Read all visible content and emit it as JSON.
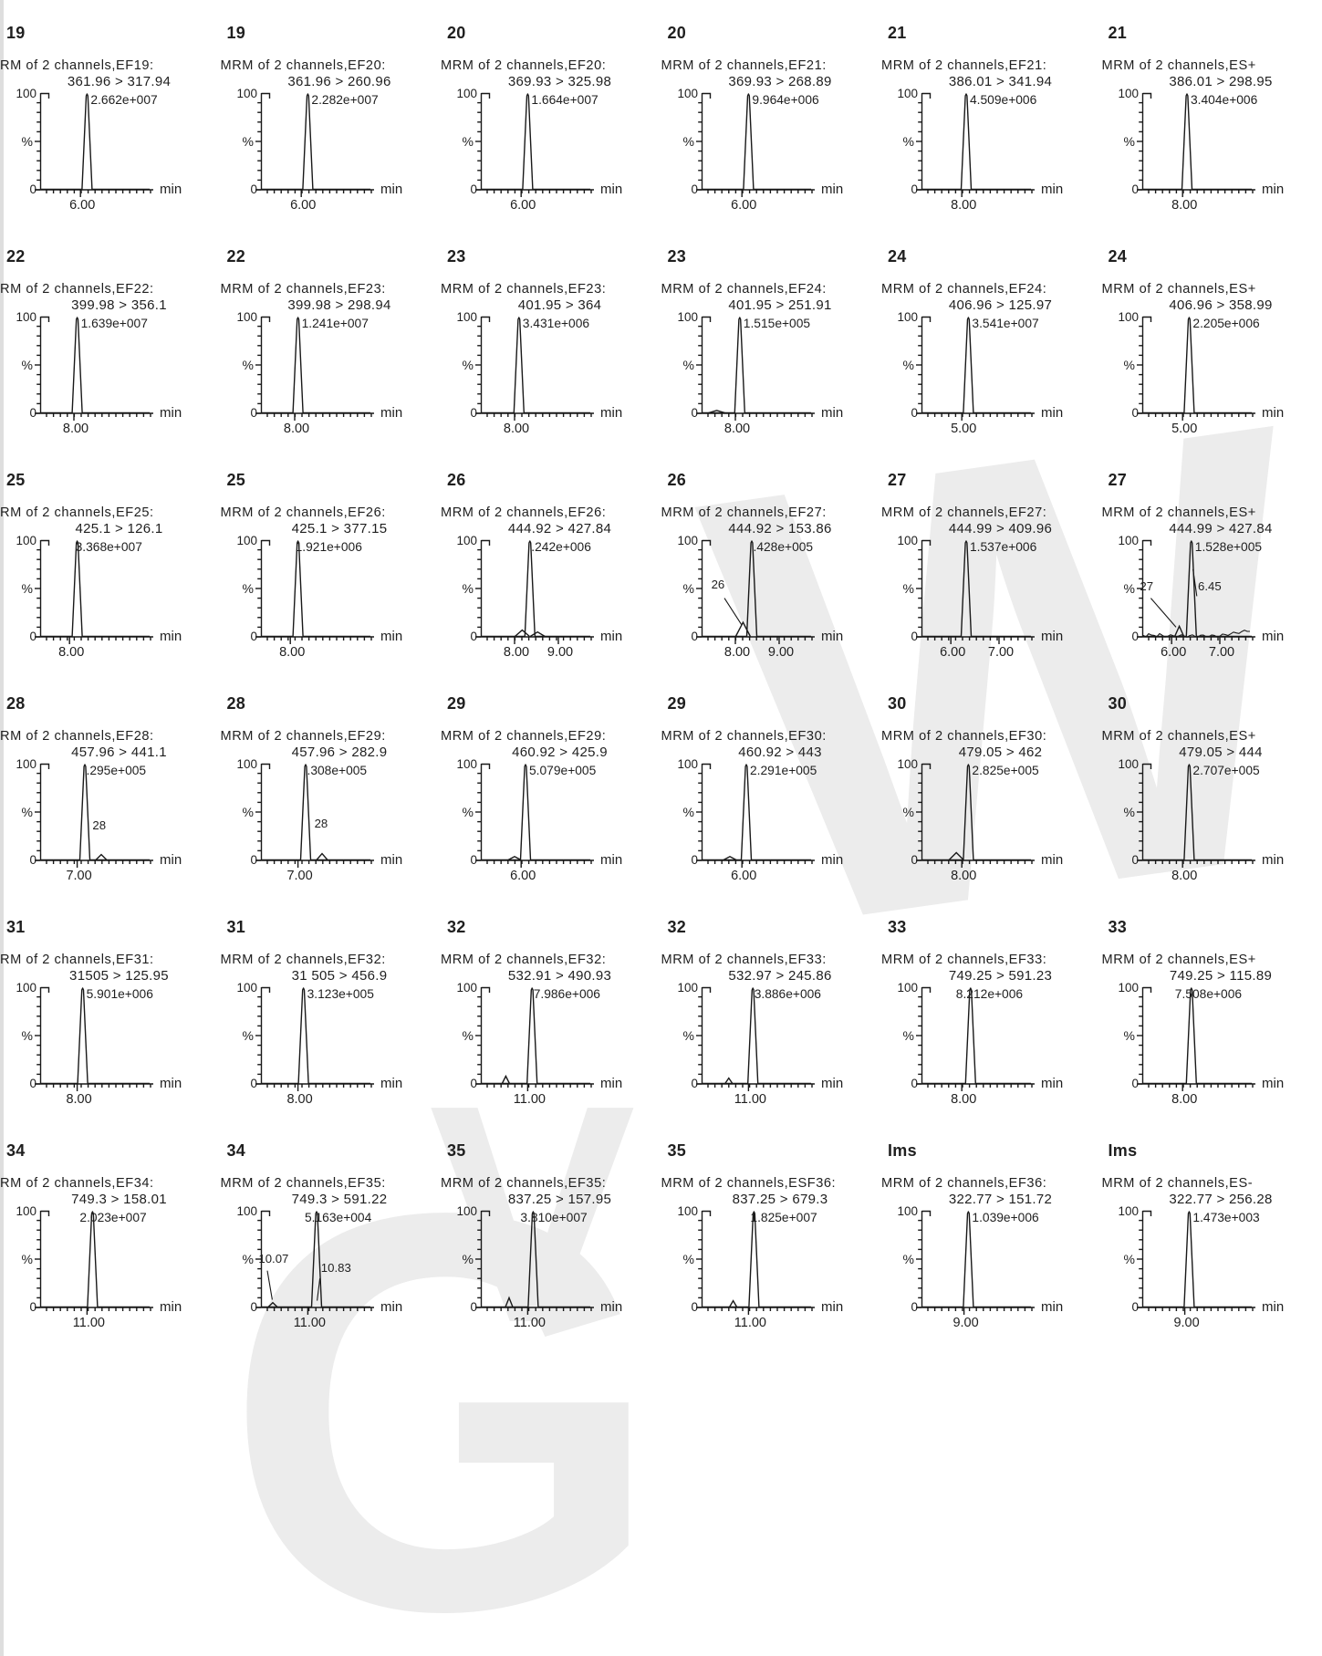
{
  "figure": {
    "description_labels": {
      "y_max": "100",
      "y_min": "0",
      "y_unit": "%",
      "x_unit": "min"
    },
    "watermark_letters": [
      "G",
      "V",
      "W"
    ]
  },
  "chart_data": {
    "type": "line",
    "layout": {
      "rows": 6,
      "cols": 6,
      "grid": "off",
      "each_subplot": "MRM chromatogram, y 0-100 %, single sharp peak"
    },
    "axis": {
      "y_max": "100",
      "y_min": "0",
      "y_unit": "%",
      "x_unit": "min"
    },
    "subplots": [
      {
        "label": "19",
        "header": "RM of 2 channels,EF19:",
        "transition": "361.96 > 317.94",
        "intensity": "2.662e+007",
        "peak": 0.42,
        "xticks": [
          {
            "f": 0.36,
            "t": "6.00"
          }
        ],
        "bumps": [],
        "ann": []
      },
      {
        "label": "19",
        "header": "MRM of 2 channels,EF20:",
        "transition": "361.96 > 260.96",
        "intensity": "2.282e+007",
        "peak": 0.42,
        "xticks": [
          {
            "f": 0.36,
            "t": "6.00"
          }
        ],
        "bumps": [],
        "ann": []
      },
      {
        "label": "20",
        "header": "MRM of 2 channels,EF20:",
        "transition": "369.93 > 325.98",
        "intensity": "1.664e+007",
        "peak": 0.42,
        "xticks": [
          {
            "f": 0.36,
            "t": "6.00"
          }
        ],
        "bumps": [],
        "ann": []
      },
      {
        "label": "20",
        "header": "MRM of 2 channels,EF21:",
        "transition": "369.93 > 268.89",
        "intensity": "9.964e+006",
        "peak": 0.42,
        "xticks": [
          {
            "f": 0.36,
            "t": "6.00"
          }
        ],
        "bumps": [],
        "ann": []
      },
      {
        "label": "21",
        "header": "MRM of 2 channels,EF21:",
        "transition": "386.01 > 341.94",
        "intensity": "4.509e+006",
        "peak": 0.4,
        "xticks": [
          {
            "f": 0.36,
            "t": "8.00"
          }
        ],
        "bumps": [],
        "ann": []
      },
      {
        "label": "21",
        "header": "MRM of 2 channels,ES+",
        "transition": "386.01 > 298.95",
        "intensity": "3.404e+006",
        "peak": 0.4,
        "xticks": [
          {
            "f": 0.36,
            "t": "8.00"
          }
        ],
        "bumps": [],
        "ann": []
      },
      {
        "label": "22",
        "header": "RM of 2 channels,EF22:",
        "transition": "399.98 > 356.1",
        "intensity": "1.639e+007",
        "peak": 0.33,
        "xticks": [
          {
            "f": 0.3,
            "t": "8.00"
          }
        ],
        "bumps": [],
        "ann": []
      },
      {
        "label": "22",
        "header": "MRM of 2 channels,EF23:",
        "transition": "399.98 > 298.94",
        "intensity": "1.241e+007",
        "peak": 0.33,
        "xticks": [
          {
            "f": 0.3,
            "t": "8.00"
          }
        ],
        "bumps": [],
        "ann": []
      },
      {
        "label": "23",
        "header": "MRM of 2 channels,EF23:",
        "transition": "401.95 > 364",
        "intensity": "3.431e+006",
        "peak": 0.34,
        "xticks": [
          {
            "f": 0.3,
            "t": "8.00"
          }
        ],
        "bumps": [],
        "ann": []
      },
      {
        "label": "23",
        "header": "MRM of 2 channels,EF24:",
        "transition": "401.95 > 251.91",
        "intensity": "1.515e+005",
        "peak": 0.34,
        "xticks": [
          {
            "f": 0.3,
            "t": "8.00"
          }
        ],
        "bumps": [
          {
            "f": 0.13,
            "h": 0.03,
            "w": 9
          }
        ],
        "ann": []
      },
      {
        "label": "24",
        "header": "MRM of 2 channels,EF24:",
        "transition": "406.96 > 125.97",
        "intensity": "3.541e+007",
        "peak": 0.42,
        "xticks": [
          {
            "f": 0.36,
            "t": "5.00"
          }
        ],
        "bumps": [],
        "ann": []
      },
      {
        "label": "24",
        "header": "MRM of 2 channels,ES+",
        "transition": "406.96 > 358.99",
        "intensity": "2.205e+006",
        "peak": 0.42,
        "xticks": [
          {
            "f": 0.36,
            "t": "5.00"
          }
        ],
        "bumps": [],
        "ann": []
      },
      {
        "label": "25",
        "header": "RM of 2 channels,EF25:",
        "transition": "425.1 > 126.1",
        "intensity": "3.368e+007",
        "peak": 0.33,
        "ioff": -2,
        "xticks": [
          {
            "f": 0.26,
            "t": "8.00"
          }
        ],
        "bumps": [],
        "ann": []
      },
      {
        "label": "25",
        "header": "MRM of 2 channels,EF26:",
        "transition": "425.1 > 377.15",
        "intensity": "1.921e+006",
        "peak": 0.33,
        "ioff": -3,
        "xticks": [
          {
            "f": 0.26,
            "t": "8.00"
          }
        ],
        "bumps": [],
        "ann": []
      },
      {
        "label": "26",
        "header": "MRM of 2 channels,EF26:",
        "transition": "444.92 > 427.84",
        "intensity": ".242e+006",
        "peak": 0.44,
        "ioff": 1.5,
        "xticks": [
          {
            "f": 0.3,
            "t": "8.00"
          },
          {
            "f": 0.7,
            "t": "9.00"
          }
        ],
        "bumps": [
          {
            "f": 0.37,
            "h": 0.07,
            "w": 8
          },
          {
            "f": 0.51,
            "h": 0.05,
            "w": 8
          }
        ],
        "ann": []
      },
      {
        "label": "26",
        "header": "MRM of 2 channels,EF27:",
        "transition": "444.92 > 153.86",
        "intensity": ".428e+005",
        "peak": 0.45,
        "ioff": 1.5,
        "xticks": [
          {
            "f": 0.3,
            "t": "8.00"
          },
          {
            "f": 0.7,
            "t": "9.00"
          }
        ],
        "bumps": [
          {
            "f": 0.37,
            "h": 0.15,
            "w": 8
          }
        ],
        "ann": [
          {
            "t": "26",
            "x": 0.08,
            "y": 0.5,
            "l": [
              0.2,
              0.6,
              0.36,
              0.88
            ]
          }
        ]
      },
      {
        "label": "27",
        "header": "MRM of 2 channels,EF27:",
        "transition": "444.99 > 409.96",
        "intensity": "1.537e+006",
        "peak": 0.4,
        "xticks": [
          {
            "f": 0.26,
            "t": "6.00"
          },
          {
            "f": 0.7,
            "t": "7.00"
          }
        ],
        "bumps": [],
        "ann": []
      },
      {
        "label": "27",
        "header": "MRM of 2 channels,ES+",
        "transition": "444.99 > 427.84",
        "intensity": "1.528e+005",
        "peak": 0.44,
        "noise": true,
        "xticks": [
          {
            "f": 0.26,
            "t": "6.00"
          },
          {
            "f": 0.7,
            "t": "7.00"
          }
        ],
        "bumps": [
          {
            "f": 0.33,
            "h": 0.11,
            "w": 5
          }
        ],
        "ann": [
          {
            "t": "27",
            "x": -0.03,
            "y": 0.52,
            "l": [
              0.07,
              0.6,
              0.3,
              0.9
            ]
          },
          {
            "t": "6.45",
            "x": 0.5,
            "y": 0.52,
            "l": [
              0.49,
              0.58,
              0.455,
              0.3
            ]
          }
        ]
      },
      {
        "label": "28",
        "header": "RM of 2 channels,EF28:",
        "transition": "457.96 > 441.1",
        "intensity": ".295e+005",
        "peak": 0.4,
        "ioff": 1.5,
        "xticks": [
          {
            "f": 0.33,
            "t": "7.00"
          }
        ],
        "bumps": [
          {
            "f": 0.55,
            "h": 0.06,
            "w": 6
          }
        ],
        "ann": [
          {
            "t": "28",
            "x": 0.47,
            "y": 0.68
          }
        ]
      },
      {
        "label": "28",
        "header": "MRM of 2 channels,EF29:",
        "transition": "457.96 > 282.9",
        "intensity": ".308e+005",
        "peak": 0.4,
        "ioff": 1.5,
        "xticks": [
          {
            "f": 0.33,
            "t": "7.00"
          }
        ],
        "bumps": [
          {
            "f": 0.55,
            "h": 0.07,
            "w": 6
          }
        ],
        "ann": [
          {
            "t": "28",
            "x": 0.48,
            "y": 0.66
          }
        ]
      },
      {
        "label": "29",
        "header": "MRM of 2 channels,EF29:",
        "transition": "460.92 > 425.9",
        "intensity": "5.079e+005",
        "peak": 0.4,
        "xticks": [
          {
            "f": 0.36,
            "t": "6.00"
          }
        ],
        "bumps": [
          {
            "f": 0.3,
            "h": 0.04,
            "w": 7
          }
        ],
        "ann": []
      },
      {
        "label": "29",
        "header": "MRM of 2 channels,EF30:",
        "transition": "460.92 > 443",
        "intensity": "2.291e+005",
        "peak": 0.4,
        "xticks": [
          {
            "f": 0.36,
            "t": "6.00"
          }
        ],
        "bumps": [
          {
            "f": 0.25,
            "h": 0.04,
            "w": 7
          }
        ],
        "ann": []
      },
      {
        "label": "30",
        "header": "MRM of 2 channels,EF30:",
        "transition": "479.05 > 462",
        "intensity": "2.825e+005",
        "peak": 0.42,
        "xticks": [
          {
            "f": 0.36,
            "t": "8.00"
          }
        ],
        "bumps": [
          {
            "f": 0.31,
            "h": 0.08,
            "w": 8
          }
        ],
        "ann": []
      },
      {
        "label": "30",
        "header": "MRM of 2 channels,ES+",
        "transition": "479.05 > 444",
        "intensity": "2.707e+005",
        "peak": 0.42,
        "xticks": [
          {
            "f": 0.36,
            "t": "8.00"
          }
        ],
        "bumps": [],
        "ann": []
      },
      {
        "label": "31",
        "header": "RM of 2 channels,EF31:",
        "transition": "31505 > 125.95",
        "intensity": "5.901e+006",
        "peak": 0.38,
        "xticks": [
          {
            "f": 0.33,
            "t": "8.00"
          }
        ],
        "bumps": [],
        "ann": []
      },
      {
        "label": "31",
        "header": "MRM of 2 channels,EF32:",
        "transition": "31 505 > 456.9",
        "intensity": "3.123e+005",
        "peak": 0.38,
        "xticks": [
          {
            "f": 0.33,
            "t": "8.00"
          }
        ],
        "bumps": [],
        "ann": []
      },
      {
        "label": "32",
        "header": "MRM of 2 channels,EF32:",
        "transition": "532.91 > 490.93",
        "intensity": "7.986e+006",
        "peak": 0.46,
        "ioff": 1.5,
        "xticks": [
          {
            "f": 0.42,
            "t": "11.00"
          }
        ],
        "bumps": [
          {
            "f": 0.22,
            "h": 0.08,
            "w": 4
          }
        ],
        "ann": []
      },
      {
        "label": "32",
        "header": "MRM of 2 channels,EF33:",
        "transition": "532.97 > 245.86",
        "intensity": "3.886e+006",
        "peak": 0.46,
        "ioff": 1.5,
        "xticks": [
          {
            "f": 0.42,
            "t": "11.00"
          }
        ],
        "bumps": [
          {
            "f": 0.24,
            "h": 0.06,
            "w": 4
          }
        ],
        "ann": []
      },
      {
        "label": "33",
        "header": "MRM of 2 channels,EF33:",
        "transition": "749.25 > 591.23",
        "intensity": "8.212e+006",
        "peak": 0.44,
        "ioff": -16,
        "xticks": [
          {
            "f": 0.36,
            "t": "8.00"
          }
        ],
        "bumps": [],
        "ann": []
      },
      {
        "label": "33",
        "header": "MRM of 2 channels,ES+",
        "transition": "749.25 > 115.89",
        "intensity": "7.508e+006",
        "peak": 0.44,
        "ioff": -18,
        "xticks": [
          {
            "f": 0.36,
            "t": "8.00"
          }
        ],
        "bumps": [],
        "ann": []
      },
      {
        "label": "34",
        "header": "RM of 2 channels,EF34:",
        "transition": "749.3 > 158.01",
        "intensity": "2.023e+007",
        "peak": 0.47,
        "ioff": -14,
        "xticks": [
          {
            "f": 0.42,
            "t": "11.00"
          }
        ],
        "bumps": [],
        "ann": []
      },
      {
        "label": "34",
        "header": "MRM of 2 channels,EF35:",
        "transition": "749.3 > 591.22",
        "intensity": "5.163e+004",
        "peak": 0.5,
        "ioff": -13,
        "xticks": [
          {
            "f": 0.42,
            "t": "11.00"
          }
        ],
        "bumps": [
          {
            "f": 0.1,
            "h": 0.05,
            "w": 5
          }
        ],
        "ann": [
          {
            "t": "10.07",
            "x": -0.03,
            "y": 0.54,
            "l": [
              0.05,
              0.62,
              0.095,
              0.92
            ]
          },
          {
            "t": "10.83",
            "x": 0.54,
            "y": 0.63,
            "l": [
              0.53,
              0.7,
              0.505,
              0.93
            ]
          }
        ]
      },
      {
        "label": "35",
        "header": "MRM of 2 channels,EF35:",
        "transition": "837.25 > 157.95",
        "intensity": "3.810e+007",
        "peak": 0.47,
        "ioff": -14,
        "xticks": [
          {
            "f": 0.42,
            "t": "11.00"
          }
        ],
        "bumps": [
          {
            "f": 0.25,
            "h": 0.1,
            "w": 4
          }
        ],
        "ann": []
      },
      {
        "label": "35",
        "header": "MRM of 2 channels,ESF36:",
        "transition": "837.25 > 679.3",
        "intensity": "1.825e+007",
        "peak": 0.47,
        "ioff": -4,
        "xticks": [
          {
            "f": 0.42,
            "t": "11.00"
          }
        ],
        "bumps": [
          {
            "f": 0.28,
            "h": 0.07,
            "w": 4
          }
        ],
        "ann": []
      },
      {
        "label": "Ims",
        "header": "MRM of 2 channels,EF36:",
        "transition": "322.77 > 151.72",
        "intensity": "1.039e+006",
        "peak": 0.42,
        "xticks": [
          {
            "f": 0.38,
            "t": "9.00"
          }
        ],
        "bumps": [],
        "ann": []
      },
      {
        "label": "Ims",
        "header": "MRM of 2 channels,ES-",
        "transition": "322.77 > 256.28",
        "intensity": "1.473e+003",
        "peak": 0.42,
        "xticks": [
          {
            "f": 0.38,
            "t": "9.00"
          }
        ],
        "bumps": [],
        "ann": []
      }
    ]
  }
}
